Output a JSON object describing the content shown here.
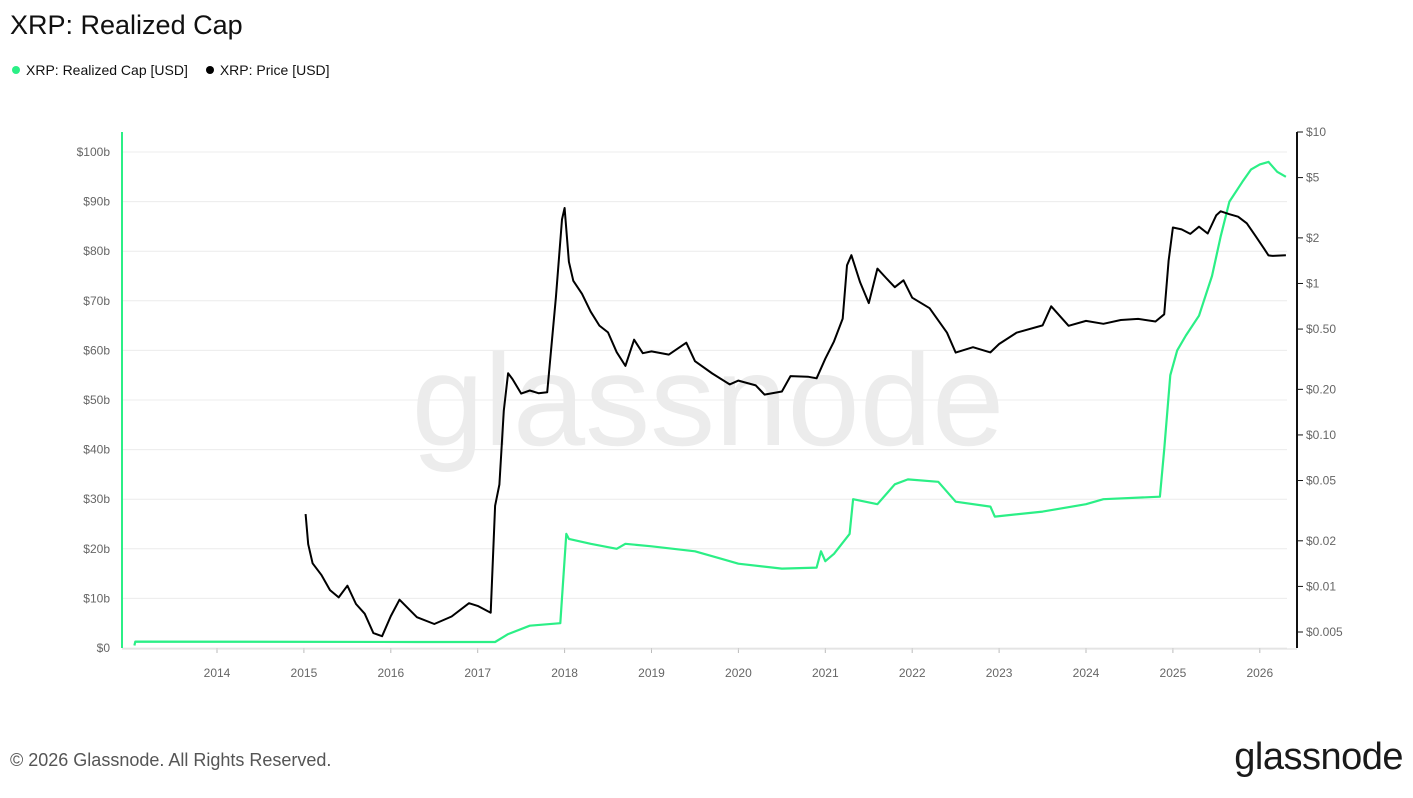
{
  "title": "XRP: Realized Cap",
  "legend": [
    {
      "label": "XRP: Realized Cap [USD]",
      "color": "#2bef86"
    },
    {
      "label": "XRP: Price [USD]",
      "color": "#000000"
    }
  ],
  "footer": "© 2026 Glassnode. All Rights Reserved.",
  "brand": "glassnode",
  "watermark": "glassnode",
  "chart_data": {
    "type": "line",
    "title": "XRP: Realized Cap",
    "x_ticks": [
      "2014",
      "2015",
      "2016",
      "2017",
      "2018",
      "2019",
      "2020",
      "2021",
      "2022",
      "2023",
      "2024",
      "2025",
      "2026"
    ],
    "y_left": {
      "ticks": [
        "$0",
        "$10b",
        "$20b",
        "$30b",
        "$40b",
        "$50b",
        "$60b",
        "$70b",
        "$80b",
        "$90b",
        "$100b"
      ],
      "range": [
        0,
        100
      ],
      "unit": "billion USD"
    },
    "y_right": {
      "ticks": [
        "$0.005",
        "$0.01",
        "$0.02",
        "$0.05",
        "$0.10",
        "$0.20",
        "$0.50",
        "$1",
        "$2",
        "$5",
        "$10"
      ],
      "scale": "log",
      "range": [
        0.005,
        10
      ]
    },
    "series": [
      {
        "name": "XRP: Realized Cap [USD]",
        "color": "#2bef86",
        "axis": "left",
        "x": [
          2013.05,
          2013.06,
          2016.3,
          2017.2,
          2017.35,
          2017.6,
          2017.95,
          2018.02,
          2018.05,
          2018.3,
          2018.6,
          2018.7,
          2019.0,
          2019.5,
          2019.8,
          2020.0,
          2020.5,
          2020.9,
          2020.95,
          2021.0,
          2021.1,
          2021.28,
          2021.32,
          2021.6,
          2021.8,
          2021.95,
          2022.3,
          2022.5,
          2022.9,
          2022.95,
          2023.5,
          2024.0,
          2024.2,
          2024.85,
          2024.9,
          2024.97,
          2025.05,
          2025.15,
          2025.3,
          2025.45,
          2025.55,
          2025.65,
          2025.8,
          2025.9,
          2026.0,
          2026.1,
          2026.2,
          2026.3
        ],
        "values": [
          0.5,
          1.3,
          1.2,
          1.2,
          2.8,
          4.5,
          5.0,
          23.0,
          22.0,
          21.0,
          20.0,
          21.0,
          20.5,
          19.5,
          18.0,
          17.0,
          16.0,
          16.2,
          19.5,
          17.5,
          19.0,
          23.0,
          30.0,
          29.0,
          33.0,
          34.0,
          33.5,
          29.5,
          28.5,
          26.5,
          27.5,
          29.0,
          30.0,
          30.5,
          40.0,
          55.0,
          60.0,
          63.0,
          67.0,
          75.0,
          83.0,
          90.0,
          94.0,
          96.5,
          97.5,
          98.0,
          96.0,
          95.0
        ]
      },
      {
        "name": "XRP: Price [USD]",
        "color": "#000000",
        "axis": "right",
        "x": [
          2015.02,
          2015.05,
          2015.1,
          2015.2,
          2015.3,
          2015.4,
          2015.5,
          2015.6,
          2015.7,
          2015.8,
          2015.9,
          2016.0,
          2016.1,
          2016.3,
          2016.5,
          2016.7,
          2016.9,
          2017.0,
          2017.15,
          2017.2,
          2017.25,
          2017.3,
          2017.35,
          2017.4,
          2017.5,
          2017.6,
          2017.7,
          2017.8,
          2017.9,
          2017.97,
          2018.0,
          2018.05,
          2018.1,
          2018.2,
          2018.3,
          2018.4,
          2018.5,
          2018.6,
          2018.7,
          2018.8,
          2018.9,
          2019.0,
          2019.2,
          2019.4,
          2019.5,
          2019.7,
          2019.9,
          2020.0,
          2020.2,
          2020.3,
          2020.5,
          2020.6,
          2020.8,
          2020.9,
          2021.0,
          2021.1,
          2021.2,
          2021.25,
          2021.3,
          2021.4,
          2021.5,
          2021.6,
          2021.7,
          2021.8,
          2021.9,
          2022.0,
          2022.2,
          2022.4,
          2022.5,
          2022.7,
          2022.9,
          2023.0,
          2023.2,
          2023.5,
          2023.6,
          2023.8,
          2024.0,
          2024.2,
          2024.4,
          2024.6,
          2024.8,
          2024.9,
          2024.95,
          2025.0,
          2025.1,
          2025.2,
          2025.3,
          2025.4,
          2025.5,
          2025.55,
          2025.65,
          2025.75,
          2025.85,
          2025.95,
          2026.05,
          2026.1,
          2026.15,
          2026.3
        ],
        "values": [
          0.03,
          0.02,
          0.015,
          0.012,
          0.009,
          0.008,
          0.01,
          0.008,
          0.007,
          0.005,
          0.0045,
          0.006,
          0.008,
          0.0065,
          0.006,
          0.0065,
          0.0075,
          0.007,
          0.0065,
          0.035,
          0.05,
          0.15,
          0.25,
          0.22,
          0.18,
          0.2,
          0.2,
          0.2,
          0.8,
          2.5,
          3.0,
          1.4,
          1.1,
          0.9,
          0.65,
          0.5,
          0.45,
          0.35,
          0.3,
          0.45,
          0.35,
          0.34,
          0.32,
          0.4,
          0.32,
          0.27,
          0.22,
          0.22,
          0.2,
          0.18,
          0.2,
          0.26,
          0.25,
          0.23,
          0.3,
          0.4,
          0.6,
          1.4,
          1.6,
          1.0,
          0.7,
          1.2,
          1.1,
          1.0,
          1.1,
          0.8,
          0.65,
          0.45,
          0.35,
          0.4,
          0.37,
          0.4,
          0.45,
          0.5,
          0.7,
          0.55,
          0.6,
          0.55,
          0.55,
          0.55,
          0.55,
          0.65,
          1.5,
          2.4,
          2.2,
          2.0,
          2.3,
          2.2,
          3.0,
          3.1,
          2.8,
          2.6,
          2.4,
          2.1,
          1.8,
          1.6,
          1.5,
          1.45
        ]
      }
    ],
    "grid": true
  }
}
